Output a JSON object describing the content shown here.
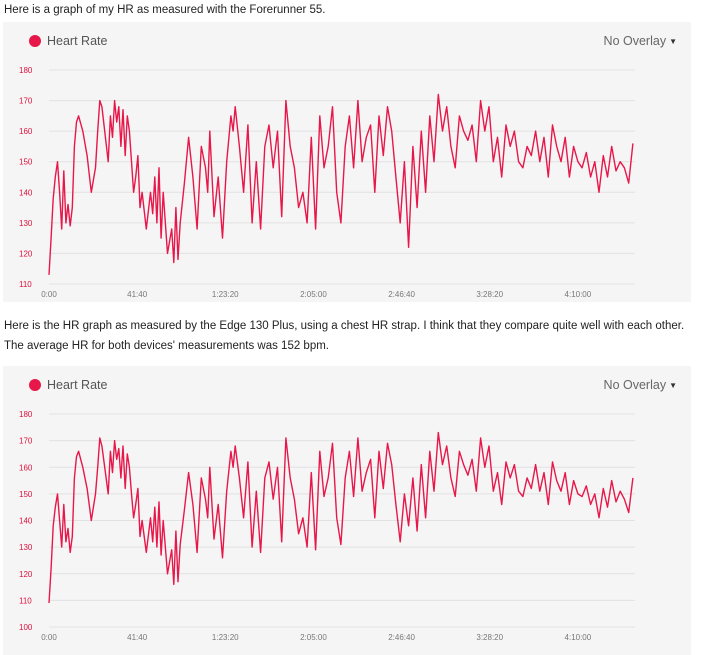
{
  "colors": {
    "line": "#e8174a",
    "accent_text": "#e0103d",
    "panel_bg": "#f5f5f5"
  },
  "paragraphs": {
    "p1": "Here is a graph of my HR as measured with the Forerunner 55.",
    "p2": "Here is the HR graph as measured by the Edge 130 Plus, using a chest HR strap. I think that they compare quite well with each other. The average HR for both devices' measurements was 152 bpm."
  },
  "chart_data": [
    {
      "type": "line",
      "legend": "Heart Rate",
      "overlay_label": "No Overlay",
      "ylim": [
        110,
        180
      ],
      "yticks": [
        110,
        120,
        130,
        140,
        150,
        160,
        170,
        180
      ],
      "xlim": [
        0,
        277
      ],
      "xticks": [
        {
          "value": 0,
          "label": "0:00"
        },
        {
          "value": 41.67,
          "label": "41:40"
        },
        {
          "value": 83.33,
          "label": "1:23:20"
        },
        {
          "value": 125,
          "label": "2:05:00"
        },
        {
          "value": 166.67,
          "label": "2:46:40"
        },
        {
          "value": 208.33,
          "label": "3:28:20"
        },
        {
          "value": 250,
          "label": "4:10:00"
        }
      ],
      "series": [
        {
          "name": "Heart Rate",
          "x": [
            0,
            1,
            2,
            3,
            4,
            5,
            6,
            7,
            8,
            9,
            10,
            11,
            12,
            13,
            14,
            16,
            18,
            20,
            22,
            23,
            24,
            25,
            26,
            28,
            29,
            30,
            31,
            32,
            33,
            34,
            35,
            36,
            37,
            38,
            39,
            40,
            41,
            42,
            43,
            44,
            46,
            48,
            49,
            50,
            51,
            52,
            53,
            54,
            56,
            58,
            59,
            60,
            61,
            62,
            64,
            66,
            68,
            70,
            72,
            74,
            75,
            76,
            78,
            80,
            82,
            84,
            86,
            87,
            88,
            90,
            92,
            94,
            96,
            98,
            100,
            102,
            104,
            106,
            108,
            110,
            112,
            114,
            116,
            118,
            120,
            122,
            124,
            126,
            128,
            130,
            132,
            134,
            136,
            138,
            140,
            142,
            144,
            146,
            148,
            150,
            152,
            154,
            156,
            158,
            160,
            162,
            164,
            166,
            168,
            170,
            172,
            174,
            176,
            178,
            180,
            182,
            184,
            186,
            188,
            190,
            192,
            194,
            196,
            198,
            200,
            202,
            204,
            206,
            208,
            210,
            212,
            214,
            216,
            218,
            220,
            222,
            224,
            226,
            228,
            230,
            232,
            234,
            236,
            238,
            240,
            242,
            244,
            246,
            248,
            250,
            252,
            254,
            256,
            258,
            260,
            262,
            264,
            266,
            268,
            270,
            272,
            274,
            276
          ],
          "values": [
            113,
            125,
            138,
            145,
            150,
            140,
            128,
            147,
            130,
            136,
            129,
            135,
            155,
            163,
            165,
            160,
            152,
            140,
            148,
            160,
            170,
            168,
            162,
            150,
            165,
            158,
            170,
            163,
            168,
            155,
            167,
            152,
            165,
            160,
            150,
            140,
            145,
            152,
            135,
            140,
            128,
            140,
            133,
            145,
            130,
            148,
            125,
            140,
            120,
            128,
            117,
            135,
            118,
            130,
            143,
            158,
            145,
            128,
            155,
            148,
            140,
            160,
            132,
            145,
            125,
            150,
            165,
            160,
            168,
            155,
            140,
            162,
            130,
            150,
            128,
            155,
            162,
            148,
            160,
            132,
            170,
            155,
            148,
            135,
            140,
            130,
            158,
            128,
            165,
            148,
            155,
            168,
            140,
            130,
            155,
            165,
            148,
            170,
            150,
            158,
            162,
            140,
            165,
            152,
            168,
            160,
            145,
            130,
            150,
            122,
            155,
            135,
            160,
            140,
            165,
            150,
            172,
            160,
            168,
            155,
            148,
            165,
            160,
            157,
            162,
            150,
            170,
            160,
            168,
            150,
            158,
            145,
            162,
            155,
            160,
            150,
            148,
            155,
            152,
            160,
            150,
            158,
            145,
            162,
            155,
            150,
            158,
            145,
            155,
            150,
            148,
            153,
            145,
            150,
            140,
            152,
            145,
            155,
            147,
            150,
            148,
            143,
            156
          ]
        }
      ]
    },
    {
      "type": "line",
      "legend": "Heart Rate",
      "overlay_label": "No Overlay",
      "ylim": [
        100,
        180
      ],
      "yticks": [
        100,
        110,
        120,
        130,
        140,
        150,
        160,
        170,
        180
      ],
      "xlim": [
        0,
        277
      ],
      "xticks": [
        {
          "value": 0,
          "label": "0:00"
        },
        {
          "value": 41.67,
          "label": "41:40"
        },
        {
          "value": 83.33,
          "label": "1:23:20"
        },
        {
          "value": 125,
          "label": "2:05:00"
        },
        {
          "value": 166.67,
          "label": "2:46:40"
        },
        {
          "value": 208.33,
          "label": "3:28:20"
        },
        {
          "value": 250,
          "label": "4:10:00"
        }
      ],
      "series": [
        {
          "name": "Heart Rate",
          "x": [
            0,
            1,
            2,
            3,
            4,
            5,
            6,
            7,
            8,
            9,
            10,
            11,
            12,
            13,
            14,
            16,
            18,
            20,
            22,
            23,
            24,
            25,
            26,
            28,
            29,
            30,
            31,
            32,
            33,
            34,
            35,
            36,
            37,
            38,
            39,
            40,
            41,
            42,
            43,
            44,
            46,
            48,
            49,
            50,
            51,
            52,
            53,
            54,
            56,
            58,
            59,
            60,
            61,
            62,
            64,
            66,
            68,
            70,
            72,
            74,
            75,
            76,
            78,
            80,
            82,
            84,
            86,
            87,
            88,
            90,
            92,
            94,
            96,
            98,
            100,
            102,
            104,
            106,
            108,
            110,
            112,
            114,
            116,
            118,
            120,
            122,
            124,
            126,
            128,
            130,
            132,
            134,
            136,
            138,
            140,
            142,
            144,
            146,
            148,
            150,
            152,
            154,
            156,
            158,
            160,
            162,
            164,
            166,
            168,
            170,
            172,
            174,
            176,
            178,
            180,
            182,
            184,
            186,
            188,
            190,
            192,
            194,
            196,
            198,
            200,
            202,
            204,
            206,
            208,
            210,
            212,
            214,
            216,
            218,
            220,
            222,
            224,
            226,
            228,
            230,
            232,
            234,
            236,
            238,
            240,
            242,
            244,
            246,
            248,
            250,
            252,
            254,
            256,
            258,
            260,
            262,
            264,
            266,
            268,
            270,
            272,
            274,
            276
          ],
          "values": [
            109,
            122,
            138,
            145,
            150,
            140,
            130,
            146,
            132,
            137,
            128,
            134,
            156,
            164,
            166,
            160,
            152,
            140,
            150,
            160,
            171,
            168,
            162,
            150,
            166,
            158,
            170,
            163,
            167,
            156,
            168,
            152,
            165,
            160,
            150,
            141,
            146,
            152,
            134,
            140,
            128,
            141,
            132,
            145,
            130,
            147,
            127,
            140,
            120,
            129,
            116,
            136,
            117,
            131,
            144,
            158,
            146,
            128,
            156,
            148,
            141,
            160,
            133,
            146,
            126,
            151,
            166,
            160,
            168,
            156,
            141,
            162,
            130,
            151,
            128,
            156,
            162,
            148,
            160,
            132,
            171,
            156,
            148,
            135,
            141,
            130,
            158,
            129,
            166,
            149,
            156,
            169,
            141,
            131,
            156,
            166,
            149,
            171,
            151,
            158,
            163,
            141,
            166,
            152,
            169,
            161,
            146,
            132,
            150,
            138,
            156,
            136,
            161,
            141,
            166,
            151,
            173,
            161,
            168,
            156,
            149,
            166,
            161,
            157,
            163,
            151,
            171,
            160,
            168,
            151,
            158,
            146,
            162,
            156,
            161,
            151,
            149,
            156,
            152,
            161,
            151,
            158,
            146,
            162,
            155,
            151,
            158,
            146,
            155,
            150,
            149,
            153,
            146,
            150,
            141,
            152,
            145,
            155,
            147,
            151,
            148,
            143,
            156
          ]
        }
      ]
    }
  ]
}
